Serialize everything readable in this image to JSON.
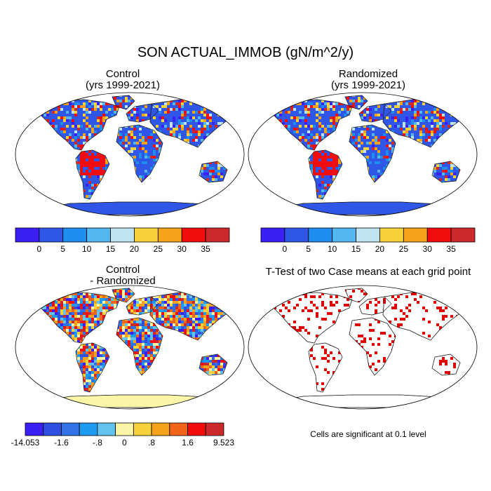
{
  "title": "SON ACTUAL_IMMOB (gN/m^2/y)",
  "panels": [
    {
      "id": "control",
      "title_line1": "Control",
      "title_line2": "(yrs 1999-2021)",
      "fill": "base"
    },
    {
      "id": "randomized",
      "title_line1": "Randomized",
      "title_line2": "(yrs 1999-2021)",
      "fill": "base"
    },
    {
      "id": "difference",
      "title_line1": "Control",
      "title_line2": "- Randomized",
      "fill": "diff"
    },
    {
      "id": "ttest",
      "title_line1": "T-Test of two Case means at each grid point",
      "title_line2": "",
      "fill": "ttest"
    }
  ],
  "colorbar_main": {
    "colors": [
      "#3b1ff5",
      "#2f56e6",
      "#1e8ef0",
      "#52b8ef",
      "#bfe3f0",
      "#f8d23a",
      "#f6a21a",
      "#f20d0d",
      "#cc2a2a"
    ],
    "tick_labels": [
      "0",
      "5",
      "10",
      "15",
      "20",
      "25",
      "30",
      "35"
    ]
  },
  "colorbar_diff": {
    "colors": [
      "#3b1ff5",
      "#2f4fe0",
      "#3173e6",
      "#1e9af0",
      "#63c3ef",
      "#fbf5a8",
      "#f8d23a",
      "#f6a21a",
      "#f26418",
      "#f20d0d",
      "#cc2a2a"
    ],
    "tick_labels": [
      "-14.053",
      "-1.6",
      "-.8",
      "0",
      ".8",
      "1.6",
      "9.523"
    ]
  },
  "significance_note": "Cells are significant at 0.1 level",
  "colors": {
    "land_fill_base": "#2f56e6",
    "ttest_dots": "#e00000",
    "diff_base": "#fbf5a8"
  }
}
